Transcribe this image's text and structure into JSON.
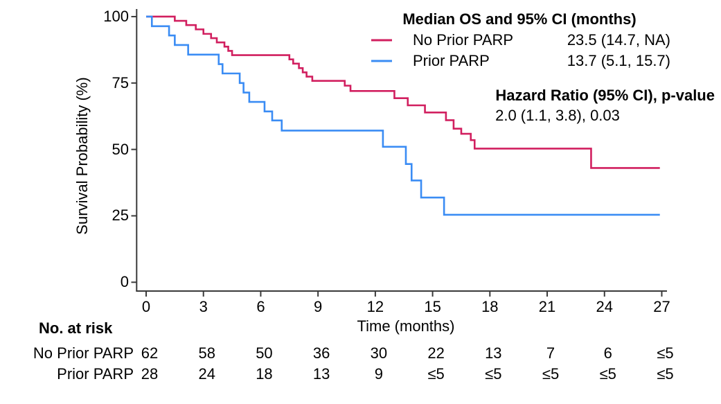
{
  "chart_data": {
    "type": "line",
    "subtype": "kaplan-meier-step",
    "title": "",
    "xlabel": "Time (months)",
    "ylabel": "Survival Probability (%)",
    "xlim": [
      0,
      27
    ],
    "ylim": [
      0,
      100
    ],
    "x_ticks": [
      0,
      3,
      6,
      9,
      12,
      15,
      18,
      21,
      24,
      27
    ],
    "y_ticks": [
      0,
      25,
      50,
      75,
      100
    ],
    "grid": "off",
    "legend": {
      "title": "Median OS and 95% CI (months)",
      "position": "top-right"
    },
    "annotations": {
      "hazard_title": "Hazard Ratio (95% CI), p-value",
      "hazard_value": "2.0 (1.1, 3.8), 0.03"
    },
    "series": [
      {
        "name": "No Prior PARP",
        "color": "#d11f5f",
        "median_os": "23.5 (14.7, NA)",
        "end_time": 26.9,
        "steps": [
          [
            0,
            100
          ],
          [
            1.5,
            98.4
          ],
          [
            2.1,
            96.8
          ],
          [
            2.6,
            95.2
          ],
          [
            3.0,
            93.5
          ],
          [
            3.4,
            91.9
          ],
          [
            3.7,
            90.3
          ],
          [
            4.1,
            88.7
          ],
          [
            4.3,
            87.1
          ],
          [
            4.5,
            85.5
          ],
          [
            7.5,
            83.9
          ],
          [
            7.7,
            82.3
          ],
          [
            8.0,
            80.6
          ],
          [
            8.2,
            79.0
          ],
          [
            8.4,
            77.4
          ],
          [
            8.7,
            75.8
          ],
          [
            10.4,
            74.0
          ],
          [
            10.7,
            72.0
          ],
          [
            13.0,
            69.3
          ],
          [
            13.7,
            66.6
          ],
          [
            14.6,
            63.9
          ],
          [
            15.7,
            61.0
          ],
          [
            16.1,
            57.8
          ],
          [
            16.5,
            55.9
          ],
          [
            17.0,
            53.5
          ],
          [
            17.2,
            50.3
          ],
          [
            23.3,
            43.0
          ]
        ]
      },
      {
        "name": "Prior PARP",
        "color": "#3a8cf4",
        "median_os": "13.7 (5.1, 15.7)",
        "end_time": 26.9,
        "steps": [
          [
            0,
            100
          ],
          [
            0.3,
            96.4
          ],
          [
            1.2,
            92.9
          ],
          [
            1.5,
            89.3
          ],
          [
            2.2,
            85.7
          ],
          [
            3.8,
            82.1
          ],
          [
            4.0,
            78.6
          ],
          [
            4.9,
            75.0
          ],
          [
            5.1,
            71.4
          ],
          [
            5.4,
            67.9
          ],
          [
            6.2,
            64.3
          ],
          [
            6.6,
            60.9
          ],
          [
            7.1,
            57.1
          ],
          [
            12.4,
            51.0
          ],
          [
            13.6,
            44.5
          ],
          [
            13.9,
            38.3
          ],
          [
            14.4,
            31.9
          ],
          [
            15.6,
            25.4
          ]
        ]
      }
    ],
    "risk_table": {
      "title": "No. at risk",
      "time_points": [
        0,
        3,
        6,
        9,
        12,
        15,
        18,
        21,
        24,
        27
      ],
      "rows": [
        {
          "label": "No Prior PARP",
          "counts": [
            "62",
            "58",
            "50",
            "36",
            "30",
            "22",
            "13",
            "7",
            "6",
            "≤5"
          ]
        },
        {
          "label": "Prior PARP",
          "counts": [
            "28",
            "24",
            "18",
            "13",
            "9",
            "≤5",
            "≤5",
            "≤5",
            "≤5",
            "≤5"
          ]
        }
      ]
    },
    "colors": {
      "no_prior_parp": "#d11f5f",
      "prior_parp": "#3a8cf4",
      "axis": "#3a3a3a",
      "text": "#000000"
    }
  }
}
